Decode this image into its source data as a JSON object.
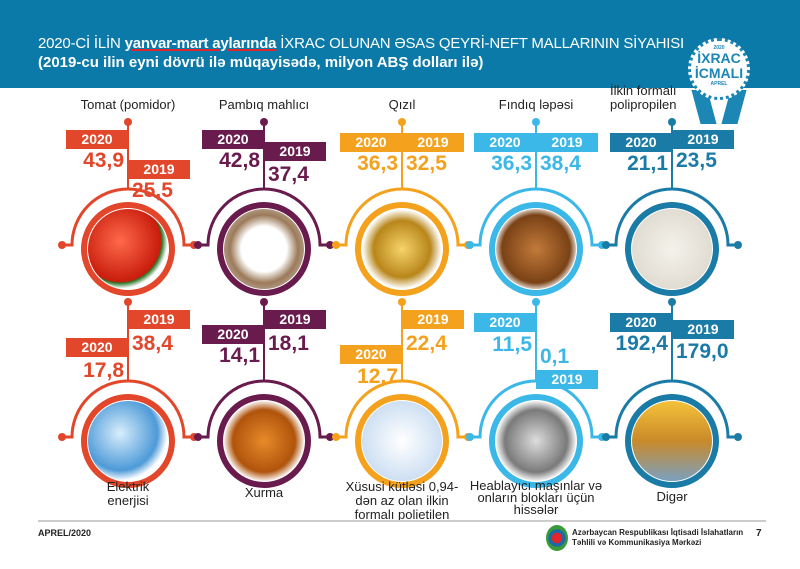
{
  "header": {
    "title_part1": "2020-Cİ İLİN ",
    "title_highlight": "yanvar-mart aylarında",
    "title_part2": " İXRAC OLUNAN ƏSAS QEYRİ-NEFT MALLARININ SİYAHISI",
    "subtitle": "(2019-cu ilin eyni dövrü ilə müqayisədə, milyon ABŞ dolları ilə)"
  },
  "badge": {
    "year": "2020",
    "line1": "İXRAC",
    "line2": "İCMALI",
    "month": "APREL",
    "color": "#1c86b5"
  },
  "items": [
    {
      "label": "Tomat (pomidor)",
      "y2020": "2020",
      "v2020": "43,9",
      "y2019": "2019",
      "v2019": "25,5",
      "color": "#e2472b",
      "icon": "tomato-icon"
    },
    {
      "label": "Pambıq mahlıcı",
      "y2020": "2020",
      "v2020": "42,8",
      "y2019": "2019",
      "v2019": "37,4",
      "color": "#6a1b4d",
      "icon": "cotton-icon"
    },
    {
      "label": "Qızıl",
      "y2020": "2020",
      "v2020": "36,3",
      "y2019": "2019",
      "v2019": "32,5",
      "color": "#f4a11d",
      "icon": "gold-icon"
    },
    {
      "label": "Fındıq ləpəsi",
      "y2020": "2020",
      "v2020": "36,3",
      "y2019": "2019",
      "v2019": "38,4",
      "color": "#3cb8e8",
      "icon": "hazelnut-icon"
    },
    {
      "label": "İlkin formalı polipropilen",
      "y2020": "2020",
      "v2020": "21,1",
      "y2019": "2019",
      "v2019": "23,5",
      "color": "#1a7ba6",
      "icon": "polypropylene-icon"
    },
    {
      "label": "Elektrik enerjisi",
      "y2020": "2020",
      "v2020": "17,8",
      "y2019": "2019",
      "v2019": "38,4",
      "color": "#e2472b",
      "icon": "lightbulb-icon"
    },
    {
      "label": "Xurma",
      "y2020": "2020",
      "v2020": "14,1",
      "y2019": "2019",
      "v2019": "18,1",
      "color": "#6a1b4d",
      "icon": "persimmon-icon"
    },
    {
      "label": "Xüsusi kütləsi 0,94-dən az olan ilkin formalı polietilen",
      "y2020": "2020",
      "v2020": "12,7",
      "y2019": "2019",
      "v2019": "22,4",
      "color": "#f4a11d",
      "icon": "polyethylene-icon"
    },
    {
      "label": "Heablayıcı maşınlar və onların blokları üçün hissələr",
      "y2020": "2020",
      "v2020": "11,5",
      "y2019": "2019",
      "v2019": "0,1",
      "color": "#3cb8e8",
      "icon": "machine-part-icon"
    },
    {
      "label": "Digər",
      "y2020": "2020",
      "v2020": "192,4",
      "y2019": "2019",
      "v2019": "179,0",
      "color": "#1a7ba6",
      "icon": "containers-icon"
    }
  ],
  "footer": {
    "date": "APREL/2020",
    "org_line1": "Azərbaycan Respublikası İqtisadi İslahatların",
    "org_line2": "Təhlili və Kommunikasiya Mərkəzi",
    "page": "7"
  }
}
